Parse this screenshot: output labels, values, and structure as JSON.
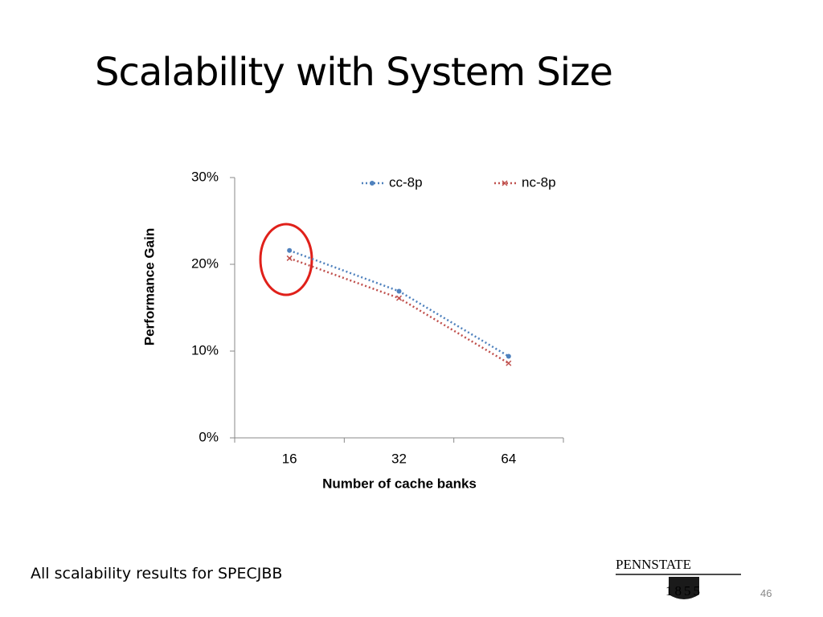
{
  "title": "Scalability with System Size",
  "footnote": "All scalability results for SPECJBB",
  "page_number": "46",
  "logo": {
    "name": "PENNSTATE",
    "year": "1855"
  },
  "chart_data": {
    "type": "line",
    "x_label": "Number of cache banks",
    "y_label": "Performance Gain",
    "categories": [
      "16",
      "32",
      "64"
    ],
    "series": [
      {
        "name": "cc-8p",
        "color": "#4f81bd",
        "marker": "circle",
        "values": [
          21.6,
          16.9,
          9.4
        ]
      },
      {
        "name": "nc-8p",
        "color": "#c0504d",
        "marker": "x",
        "values": [
          20.7,
          16.1,
          8.6
        ]
      }
    ],
    "ylim": [
      0,
      30
    ],
    "yticks": [
      {
        "value": 0,
        "label": "0%"
      },
      {
        "value": 10,
        "label": "10%"
      },
      {
        "value": 20,
        "label": "20%"
      },
      {
        "value": 30,
        "label": "30%"
      }
    ],
    "legend": "top"
  }
}
